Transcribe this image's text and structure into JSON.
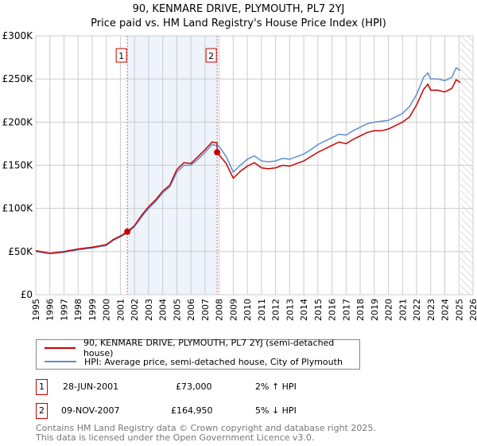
{
  "chart_data": {
    "type": "line",
    "title": "90, KENMARE DRIVE, PLYMOUTH, PL7 2YJ",
    "subtitle": "Price paid vs. HM Land Registry's House Price Index (HPI)",
    "xlim": [
      1995,
      2026
    ],
    "ylim": [
      0,
      300000
    ],
    "y_ticks": [
      0,
      50000,
      100000,
      150000,
      200000,
      250000,
      300000
    ],
    "y_tick_labels": [
      "£0",
      "£50K",
      "£100K",
      "£150K",
      "£200K",
      "£250K",
      "£300K"
    ],
    "x_ticks": [
      1995,
      1996,
      1997,
      1998,
      1999,
      2000,
      2001,
      2002,
      2003,
      2004,
      2005,
      2006,
      2007,
      2008,
      2009,
      2010,
      2011,
      2012,
      2013,
      2014,
      2015,
      2016,
      2017,
      2018,
      2019,
      2020,
      2021,
      2022,
      2023,
      2024,
      2025,
      2026
    ],
    "grid": true,
    "shaded_range": [
      2001.49,
      2007.86
    ],
    "forecast_hatch_from": 2025.1,
    "series": [
      {
        "name": "90, KENMARE DRIVE, PLYMOUTH, PL7 2YJ (semi-detached house)",
        "color": "#cc0000",
        "x": [
          1995,
          1996,
          1997,
          1998,
          1999,
          2000,
          2000.5,
          2001,
          2001.5,
          2002,
          2002.5,
          2003,
          2003.5,
          2004,
          2004.5,
          2005,
          2005.5,
          2006,
          2006.5,
          2007,
          2007.5,
          2007.85,
          2007.86,
          2008,
          2008.5,
          2009,
          2009.5,
          2010,
          2010.5,
          2011,
          2011.5,
          2012,
          2012.5,
          2013,
          2013.5,
          2014,
          2014.5,
          2015,
          2015.5,
          2016,
          2016.5,
          2017,
          2017.5,
          2018,
          2018.5,
          2019,
          2019.5,
          2020,
          2020.5,
          2021,
          2021.5,
          2022,
          2022.5,
          2022.8,
          2023,
          2023.5,
          2024,
          2024.5,
          2024.8,
          2025.1
        ],
        "y": [
          51000,
          48000,
          50000,
          53000,
          55000,
          58000,
          64000,
          68000,
          73000,
          80000,
          92000,
          102000,
          110000,
          120000,
          127000,
          145000,
          153000,
          152000,
          160000,
          168000,
          177000,
          176000,
          165000,
          162000,
          152000,
          135000,
          143000,
          149000,
          153000,
          147000,
          146000,
          147000,
          150000,
          149000,
          152000,
          155000,
          160000,
          165000,
          169000,
          173000,
          177000,
          175000,
          180000,
          184000,
          188000,
          190000,
          190000,
          192000,
          196000,
          200000,
          206000,
          220000,
          238000,
          244000,
          237000,
          237000,
          235000,
          239000,
          249000,
          246000
        ]
      },
      {
        "name": "HPI: Average price, semi-detached house, City of Plymouth",
        "color": "#5b8fd4",
        "x": [
          1995,
          1996,
          1997,
          1998,
          1999,
          2000,
          2000.5,
          2001,
          2001.5,
          2002,
          2002.5,
          2003,
          2003.5,
          2004,
          2004.5,
          2005,
          2005.5,
          2006,
          2006.5,
          2007,
          2007.5,
          2008,
          2008.5,
          2009,
          2009.5,
          2010,
          2010.5,
          2011,
          2011.5,
          2012,
          2012.5,
          2013,
          2013.5,
          2014,
          2014.5,
          2015,
          2015.5,
          2016,
          2016.5,
          2017,
          2017.5,
          2018,
          2018.5,
          2019,
          2019.5,
          2020,
          2020.5,
          2021,
          2021.5,
          2022,
          2022.5,
          2022.8,
          2023,
          2023.5,
          2024,
          2024.5,
          2024.8,
          2025.1
        ],
        "y": [
          50000,
          47500,
          49000,
          52000,
          54000,
          57000,
          63000,
          67000,
          71500,
          79000,
          90000,
          100000,
          108000,
          118000,
          125000,
          142000,
          150000,
          150000,
          157000,
          165000,
          174000,
          172000,
          160000,
          142000,
          150000,
          157000,
          161000,
          155000,
          154000,
          155000,
          158000,
          157000,
          160000,
          163000,
          168000,
          174000,
          178000,
          182000,
          186000,
          185000,
          190000,
          194000,
          198000,
          200000,
          201000,
          202000,
          206000,
          210000,
          218000,
          232000,
          252000,
          257000,
          250000,
          250000,
          248000,
          252000,
          263000,
          260000
        ]
      }
    ],
    "sales": [
      {
        "label": "1",
        "x": 2001.49,
        "y": 73000,
        "date": "28-JUN-2001",
        "price": "£73,000",
        "hpi": "2% ↑ HPI"
      },
      {
        "label": "2",
        "x": 2007.86,
        "y": 164950,
        "date": "09-NOV-2007",
        "price": "£164,950",
        "hpi": "5% ↓ HPI"
      }
    ]
  },
  "footer": {
    "line1": "Contains HM Land Registry data © Crown copyright and database right 2025.",
    "line2": "This data is licensed under the Open Government Licence v3.0."
  }
}
